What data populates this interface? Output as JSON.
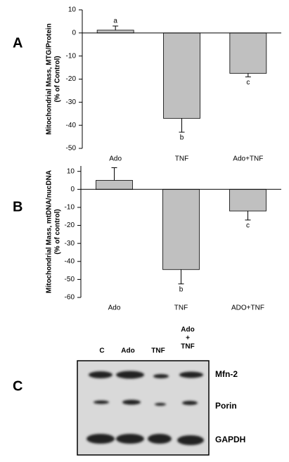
{
  "chart_data": [
    {
      "type": "bar",
      "panel": "A",
      "ylabel": [
        "Mitochondrial Mass, MTG/Protein",
        "(% of Control)"
      ],
      "categories": [
        "Ado",
        "TNF",
        "Ado+TNF"
      ],
      "values": [
        1.2,
        -37,
        -17.5
      ],
      "errors": [
        1.8,
        6,
        1.5
      ],
      "annotations": [
        "a",
        "b",
        "c"
      ],
      "color": "#c0c0c0",
      "ylim": [
        -50,
        10
      ],
      "yticks": [
        -50,
        -40,
        -30,
        -20,
        -10,
        0,
        10
      ]
    },
    {
      "type": "bar",
      "panel": "B",
      "ylabel": [
        "Mitochondrial Mass, mtDNA/nucDNA",
        "(% of control)"
      ],
      "categories": [
        "Ado",
        "TNF",
        "ADO+TNF"
      ],
      "values": [
        5,
        -44.5,
        -12
      ],
      "errors": [
        7,
        8,
        5
      ],
      "annotations": [
        null,
        "b",
        "c"
      ],
      "color": "#c0c0c0",
      "ylim": [
        -60,
        13
      ],
      "yticks": [
        -60,
        -50,
        -40,
        -30,
        -20,
        -10,
        0,
        10
      ]
    }
  ],
  "blot": {
    "panel": "C",
    "lanes": [
      "C",
      "Ado",
      "TNF",
      [
        "Ado",
        "+",
        "TNF"
      ]
    ],
    "bands": [
      "Mfn-2",
      "Porin",
      "GAPDH"
    ]
  }
}
